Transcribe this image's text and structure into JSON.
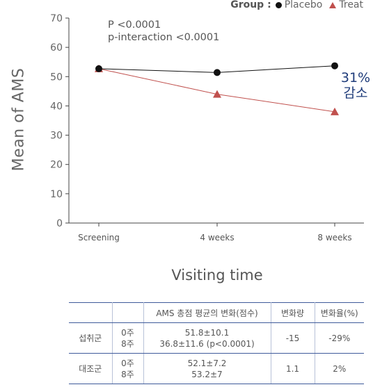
{
  "legend": {
    "title": "Group :",
    "placebo": "Placebo",
    "treat": "Treat"
  },
  "colors": {
    "placebo": "#111111",
    "treat": "#c0504d",
    "annotation": "#1f3c7a",
    "table_border": "#3e5a9a"
  },
  "annotation": {
    "p_value": "P <0.0001",
    "p_interaction": "p-interaction <0.0001",
    "reduction_pct": "31%",
    "reduction_label": "감소"
  },
  "chart_data": {
    "type": "line",
    "categories": [
      "Screening",
      "4 weeks",
      "8 weeks"
    ],
    "series": [
      {
        "name": "Placebo",
        "values": [
          52.7,
          51.4,
          53.7
        ]
      },
      {
        "name": "Treat",
        "values": [
          52.7,
          44.0,
          38.0
        ]
      }
    ],
    "xlabel": "Visiting time",
    "ylabel": "Mean of AMS",
    "ylim": [
      0,
      70
    ],
    "yticks": [
      0,
      10,
      20,
      30,
      40,
      50,
      60,
      70
    ],
    "grid": false,
    "legend_position": "top-right"
  },
  "table": {
    "headers": [
      "",
      "",
      "AMS 총점 평균의 변화(점수)",
      "변화량",
      "변화율(%)"
    ],
    "rows": [
      {
        "group": "섭취군",
        "weeks": [
          "0주",
          "8주"
        ],
        "scores": [
          "51.8±10.1",
          "36.8±11.6 (p<0.0001)"
        ],
        "change": "-15",
        "rate": "-29%"
      },
      {
        "group": "대조군",
        "weeks": [
          "0주",
          "8주"
        ],
        "scores": [
          "52.1±7.2",
          "53.2±7"
        ],
        "change": "1.1",
        "rate": "2%"
      }
    ]
  }
}
